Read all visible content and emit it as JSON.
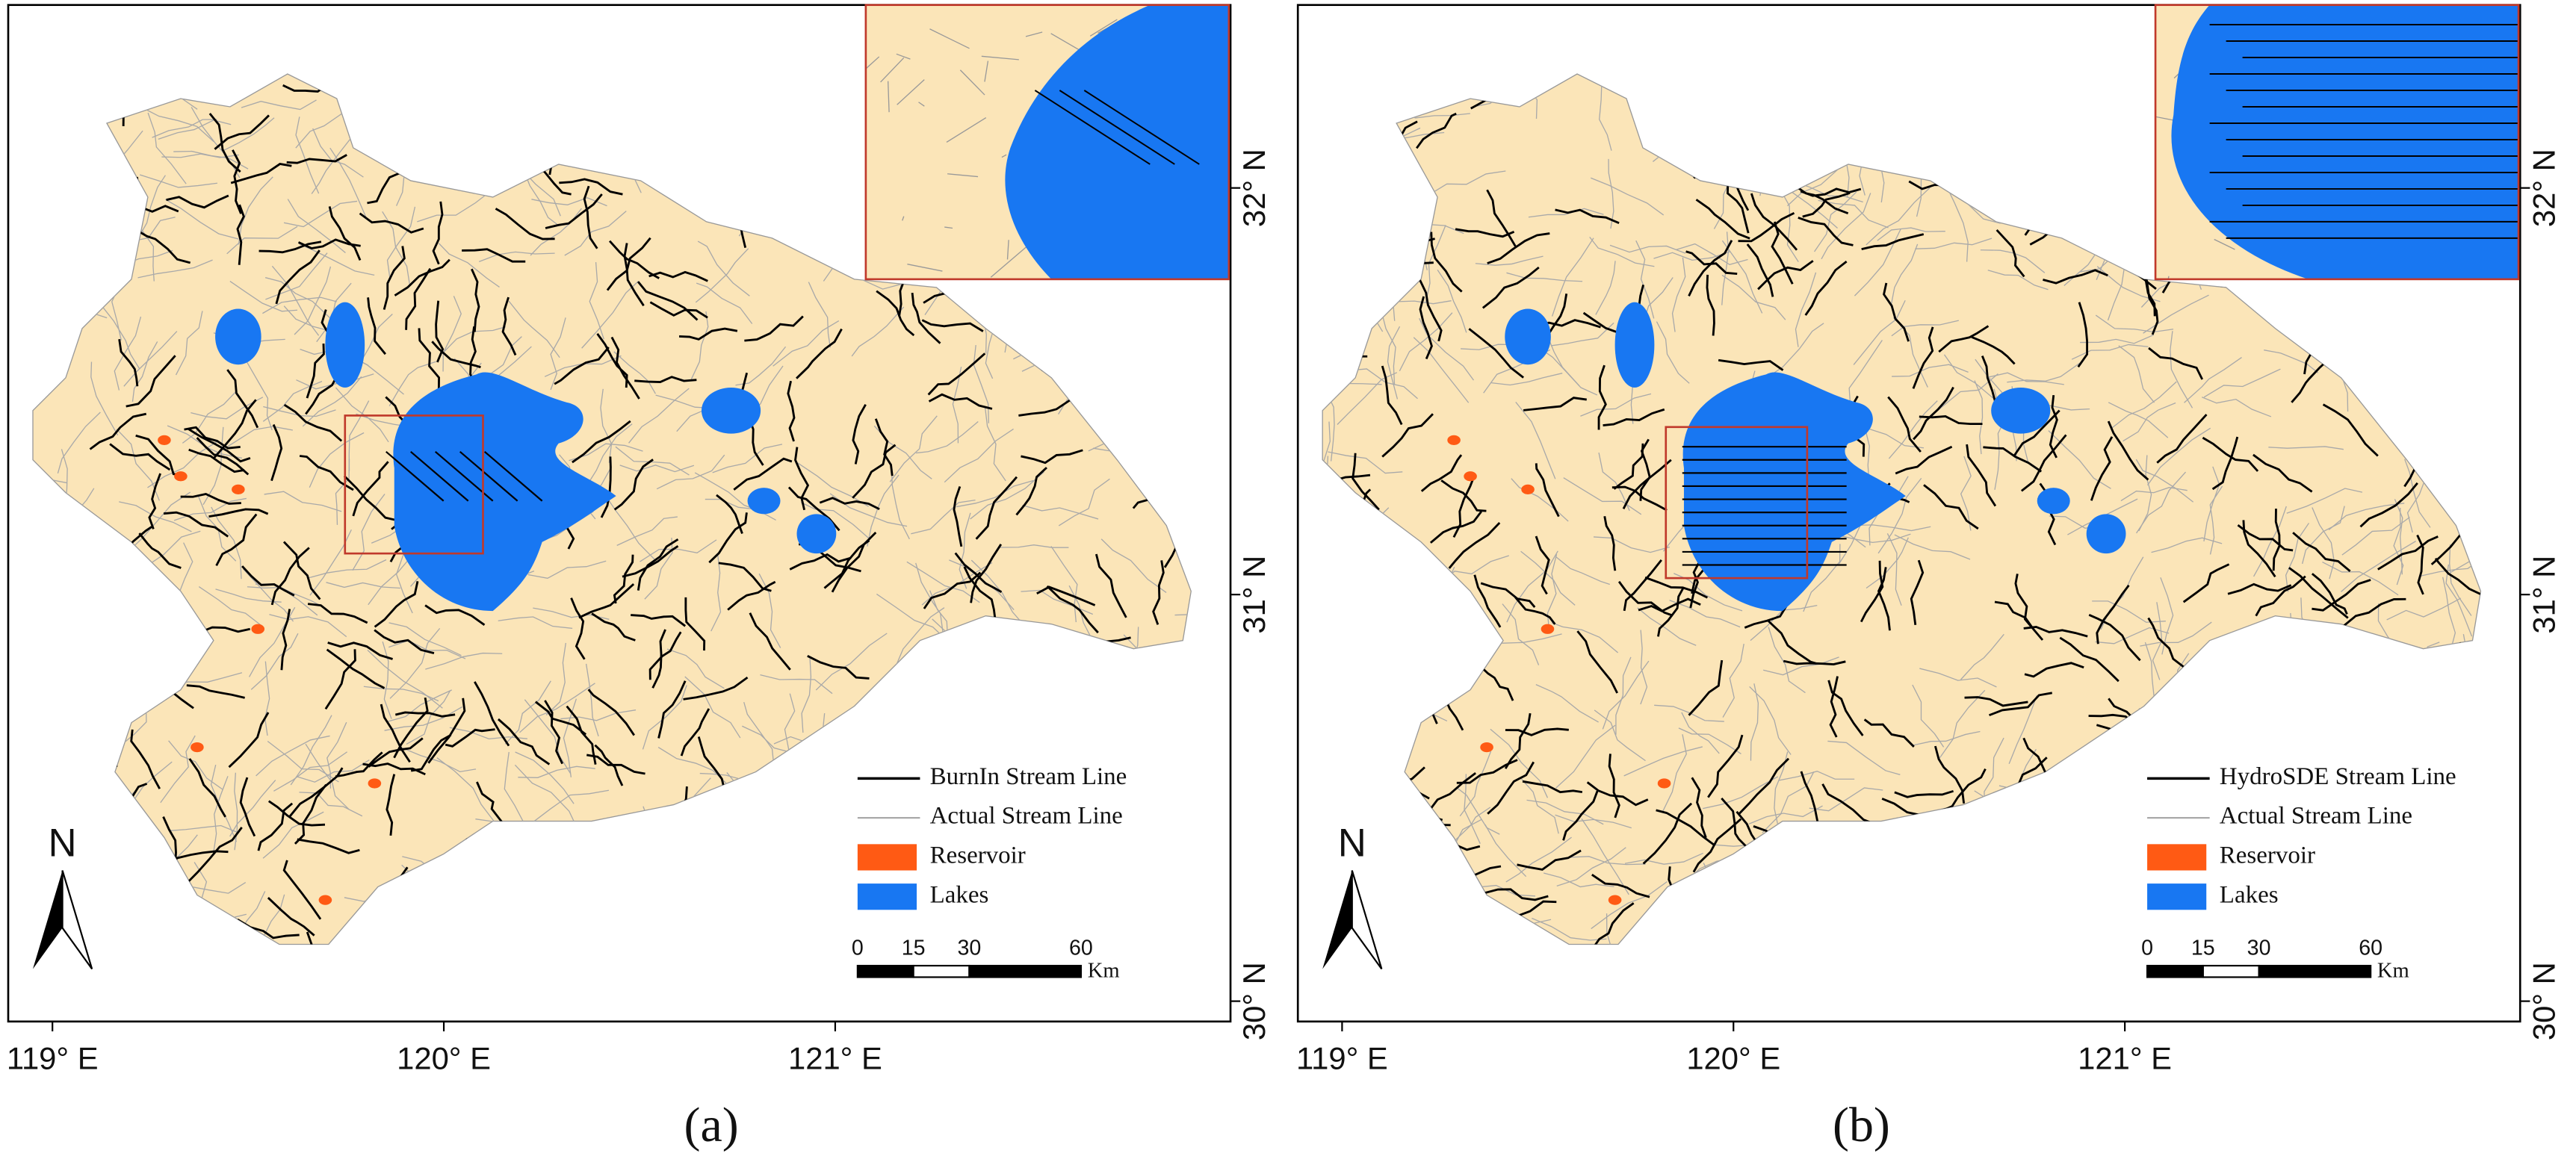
{
  "panels": [
    {
      "caption": "(a)",
      "north": "N",
      "legend": [
        {
          "label": "BurnIn Stream Line",
          "color": "#000000"
        },
        {
          "label": "Actual Stream Line",
          "color": "#a9a9a9"
        },
        {
          "label": "Reservoir",
          "color": "#ff5a14"
        },
        {
          "label": "Lakes",
          "color": "#1877f2"
        }
      ],
      "scale": {
        "ticks": [
          0,
          15,
          30,
          60
        ],
        "unit": "Km"
      },
      "xlim": [
        118.887,
        122.01
      ],
      "ylim": [
        29.95,
        32.45
      ],
      "xticks": [
        {
          "value": 119,
          "label": "119° E"
        },
        {
          "value": 120,
          "label": "120° E"
        },
        {
          "value": 121,
          "label": "121° E"
        }
      ],
      "yticks": [
        {
          "value": 30,
          "label": "30° N"
        },
        {
          "value": 31,
          "label": "31° N"
        },
        {
          "value": 32,
          "label": "32° N"
        }
      ]
    },
    {
      "caption": "(b)",
      "north": "N",
      "legend": [
        {
          "label": "HydroSDE Stream Line",
          "color": "#000000"
        },
        {
          "label": "Actual Stream Line",
          "color": "#a9a9a9"
        },
        {
          "label": "Reservoir",
          "color": "#ff5a14"
        },
        {
          "label": "Lakes",
          "color": "#1877f2"
        }
      ],
      "scale": {
        "ticks": [
          0,
          15,
          30,
          60
        ],
        "unit": "Km"
      },
      "xlim": [
        118.887,
        122.01
      ],
      "ylim": [
        29.95,
        32.45
      ],
      "xticks": [
        {
          "value": 119,
          "label": "119° E"
        },
        {
          "value": 120,
          "label": "120° E"
        },
        {
          "value": 121,
          "label": "121° E"
        }
      ],
      "yticks": [
        {
          "value": 30,
          "label": "30° N"
        },
        {
          "value": 31,
          "label": "31° N"
        },
        {
          "value": 32,
          "label": "32° N"
        }
      ]
    }
  ]
}
